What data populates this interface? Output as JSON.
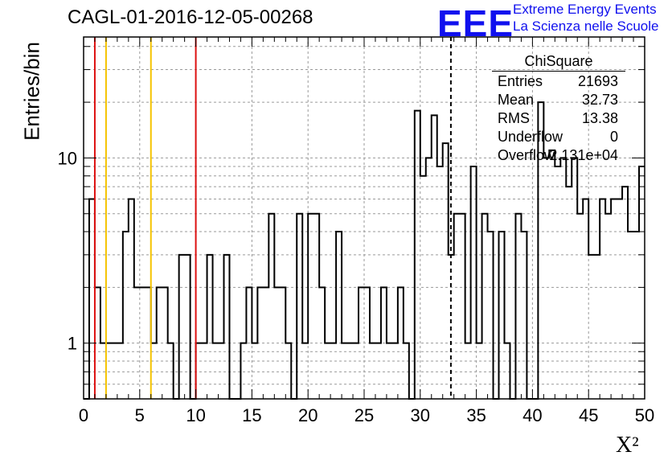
{
  "chart_data": {
    "type": "histogram",
    "title": "CAGL-01-2016-12-05-00268",
    "xlabel": "X²",
    "ylabel": "Entries/bin",
    "xlim": [
      0,
      50
    ],
    "ylim": [
      0.5,
      45
    ],
    "yscale": "log",
    "bin_width": 0.5,
    "grid": true,
    "x_ticks": [
      "0",
      "5",
      "10",
      "15",
      "20",
      "25",
      "30",
      "35",
      "40",
      "45",
      "50"
    ],
    "y_ticks": [
      "1",
      "10"
    ],
    "bin_counts": [
      0,
      6,
      2,
      1,
      1,
      1,
      1,
      4,
      6,
      2,
      2,
      2,
      1,
      2,
      2,
      1,
      0,
      3,
      3,
      0,
      1,
      1,
      3,
      1,
      1,
      3,
      0,
      0,
      1,
      2,
      1,
      2,
      2,
      5,
      2,
      2,
      1,
      0,
      5,
      1,
      5,
      5,
      2,
      1,
      1,
      4,
      1,
      1,
      1,
      2,
      2,
      1,
      1,
      2,
      1,
      1,
      2,
      1,
      0,
      18,
      8,
      10,
      17,
      9,
      12,
      3,
      5,
      5,
      1,
      9,
      1,
      5,
      4,
      0,
      4,
      1,
      0,
      5,
      4,
      0,
      0,
      20,
      10,
      11,
      9,
      10,
      7,
      10,
      5,
      6,
      3,
      3,
      6,
      5,
      6,
      6,
      7,
      4,
      4,
      9
    ],
    "vertical_lines": [
      {
        "x": 1,
        "color": "#dd1111",
        "style": "solid"
      },
      {
        "x": 2,
        "color": "#f5c400",
        "style": "solid"
      },
      {
        "x": 6,
        "color": "#f5c400",
        "style": "solid"
      },
      {
        "x": 10,
        "color": "#dd1111",
        "style": "solid"
      },
      {
        "x": 32.73,
        "color": "#000000",
        "style": "dashed"
      }
    ]
  },
  "stats_box": {
    "title": "ChiSquare",
    "rows": [
      {
        "key": "Entries",
        "value": "21693"
      },
      {
        "key": "Mean",
        "value": "32.73"
      },
      {
        "key": "RMS",
        "value": "13.38"
      },
      {
        "key": "Underflow",
        "value": "0"
      },
      {
        "key": "Overflow",
        "value": "2.131e+04"
      }
    ]
  },
  "logo": {
    "mark": "EEE",
    "line1": "Extreme Energy Events",
    "line2": "La Scienza nelle Scuole"
  }
}
